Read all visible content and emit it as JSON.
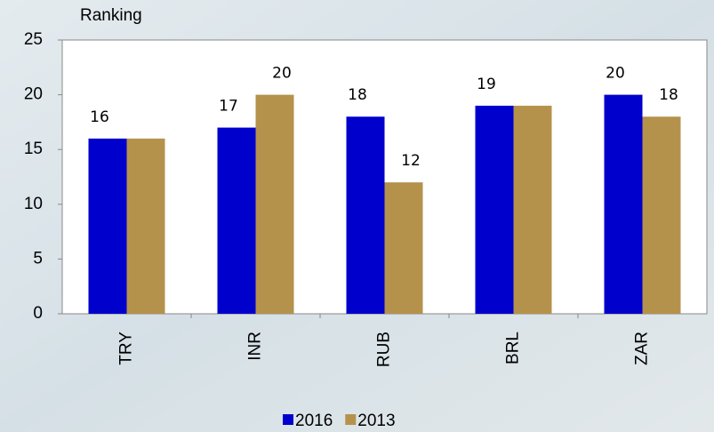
{
  "chart_data": {
    "type": "bar",
    "y_label": "Ranking",
    "categories": [
      "TRY",
      "INR",
      "RUB",
      "BRL",
      "ZAR"
    ],
    "series": [
      {
        "name": "2016",
        "color": "#0000cc",
        "values": [
          16,
          17,
          18,
          19,
          20
        ]
      },
      {
        "name": "2013",
        "color": "#b5924c",
        "values": [
          16,
          20,
          12,
          19,
          18
        ]
      }
    ],
    "ylim": [
      0,
      25
    ],
    "yticks": [
      0,
      5,
      10,
      15,
      20,
      25
    ],
    "grid": false
  }
}
